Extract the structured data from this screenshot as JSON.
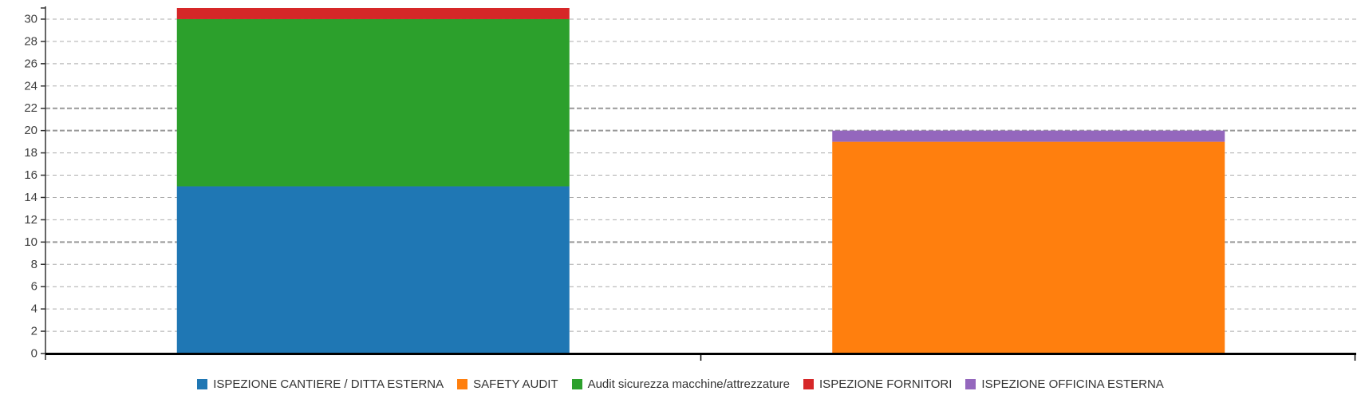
{
  "chart_data": {
    "type": "bar",
    "variant": "stacked-vertical",
    "title": "",
    "xlabel": "",
    "ylabel": "",
    "categories": [
      "",
      ""
    ],
    "series": [
      {
        "name": "ISPEZIONE CANTIERE / DITTA ESTERNA",
        "color": "#1F77B4",
        "values": [
          15,
          0
        ]
      },
      {
        "name": "SAFETY AUDIT",
        "color": "#FF7F0E",
        "values": [
          0,
          19
        ]
      },
      {
        "name": "Audit sicurezza macchine/attrezzature",
        "color": "#2CA02C",
        "values": [
          15,
          0
        ]
      },
      {
        "name": "ISPEZIONE FORNITORI",
        "color": "#D62728",
        "values": [
          1,
          0
        ]
      },
      {
        "name": "ISPEZIONE OFFICINA ESTERNA",
        "color": "#9467BD",
        "values": [
          0,
          1
        ]
      }
    ],
    "stack_totals": [
      31,
      20
    ],
    "y_axis": {
      "min": 0,
      "max": 31,
      "tick_interval": 2,
      "tick_labels": [
        "0",
        "2",
        "4",
        "6",
        "8",
        "10",
        "12",
        "14",
        "16",
        "18",
        "20",
        "22",
        "24",
        "26",
        "28",
        "30"
      ],
      "bold_gridlines": [
        10,
        20,
        22
      ],
      "grid": "dashed-horizontal"
    },
    "x_axis": {
      "category_divider_ticks": 1
    },
    "legend_position": "bottom"
  },
  "colors": {
    "background": "#FFFFFF",
    "x_axis_line": "#000000",
    "y_axis_line": "#333333",
    "gridline": "#ACACAC",
    "gridline_bold": "#999999",
    "tick_label": "#404040",
    "legend_text": "#333333"
  }
}
